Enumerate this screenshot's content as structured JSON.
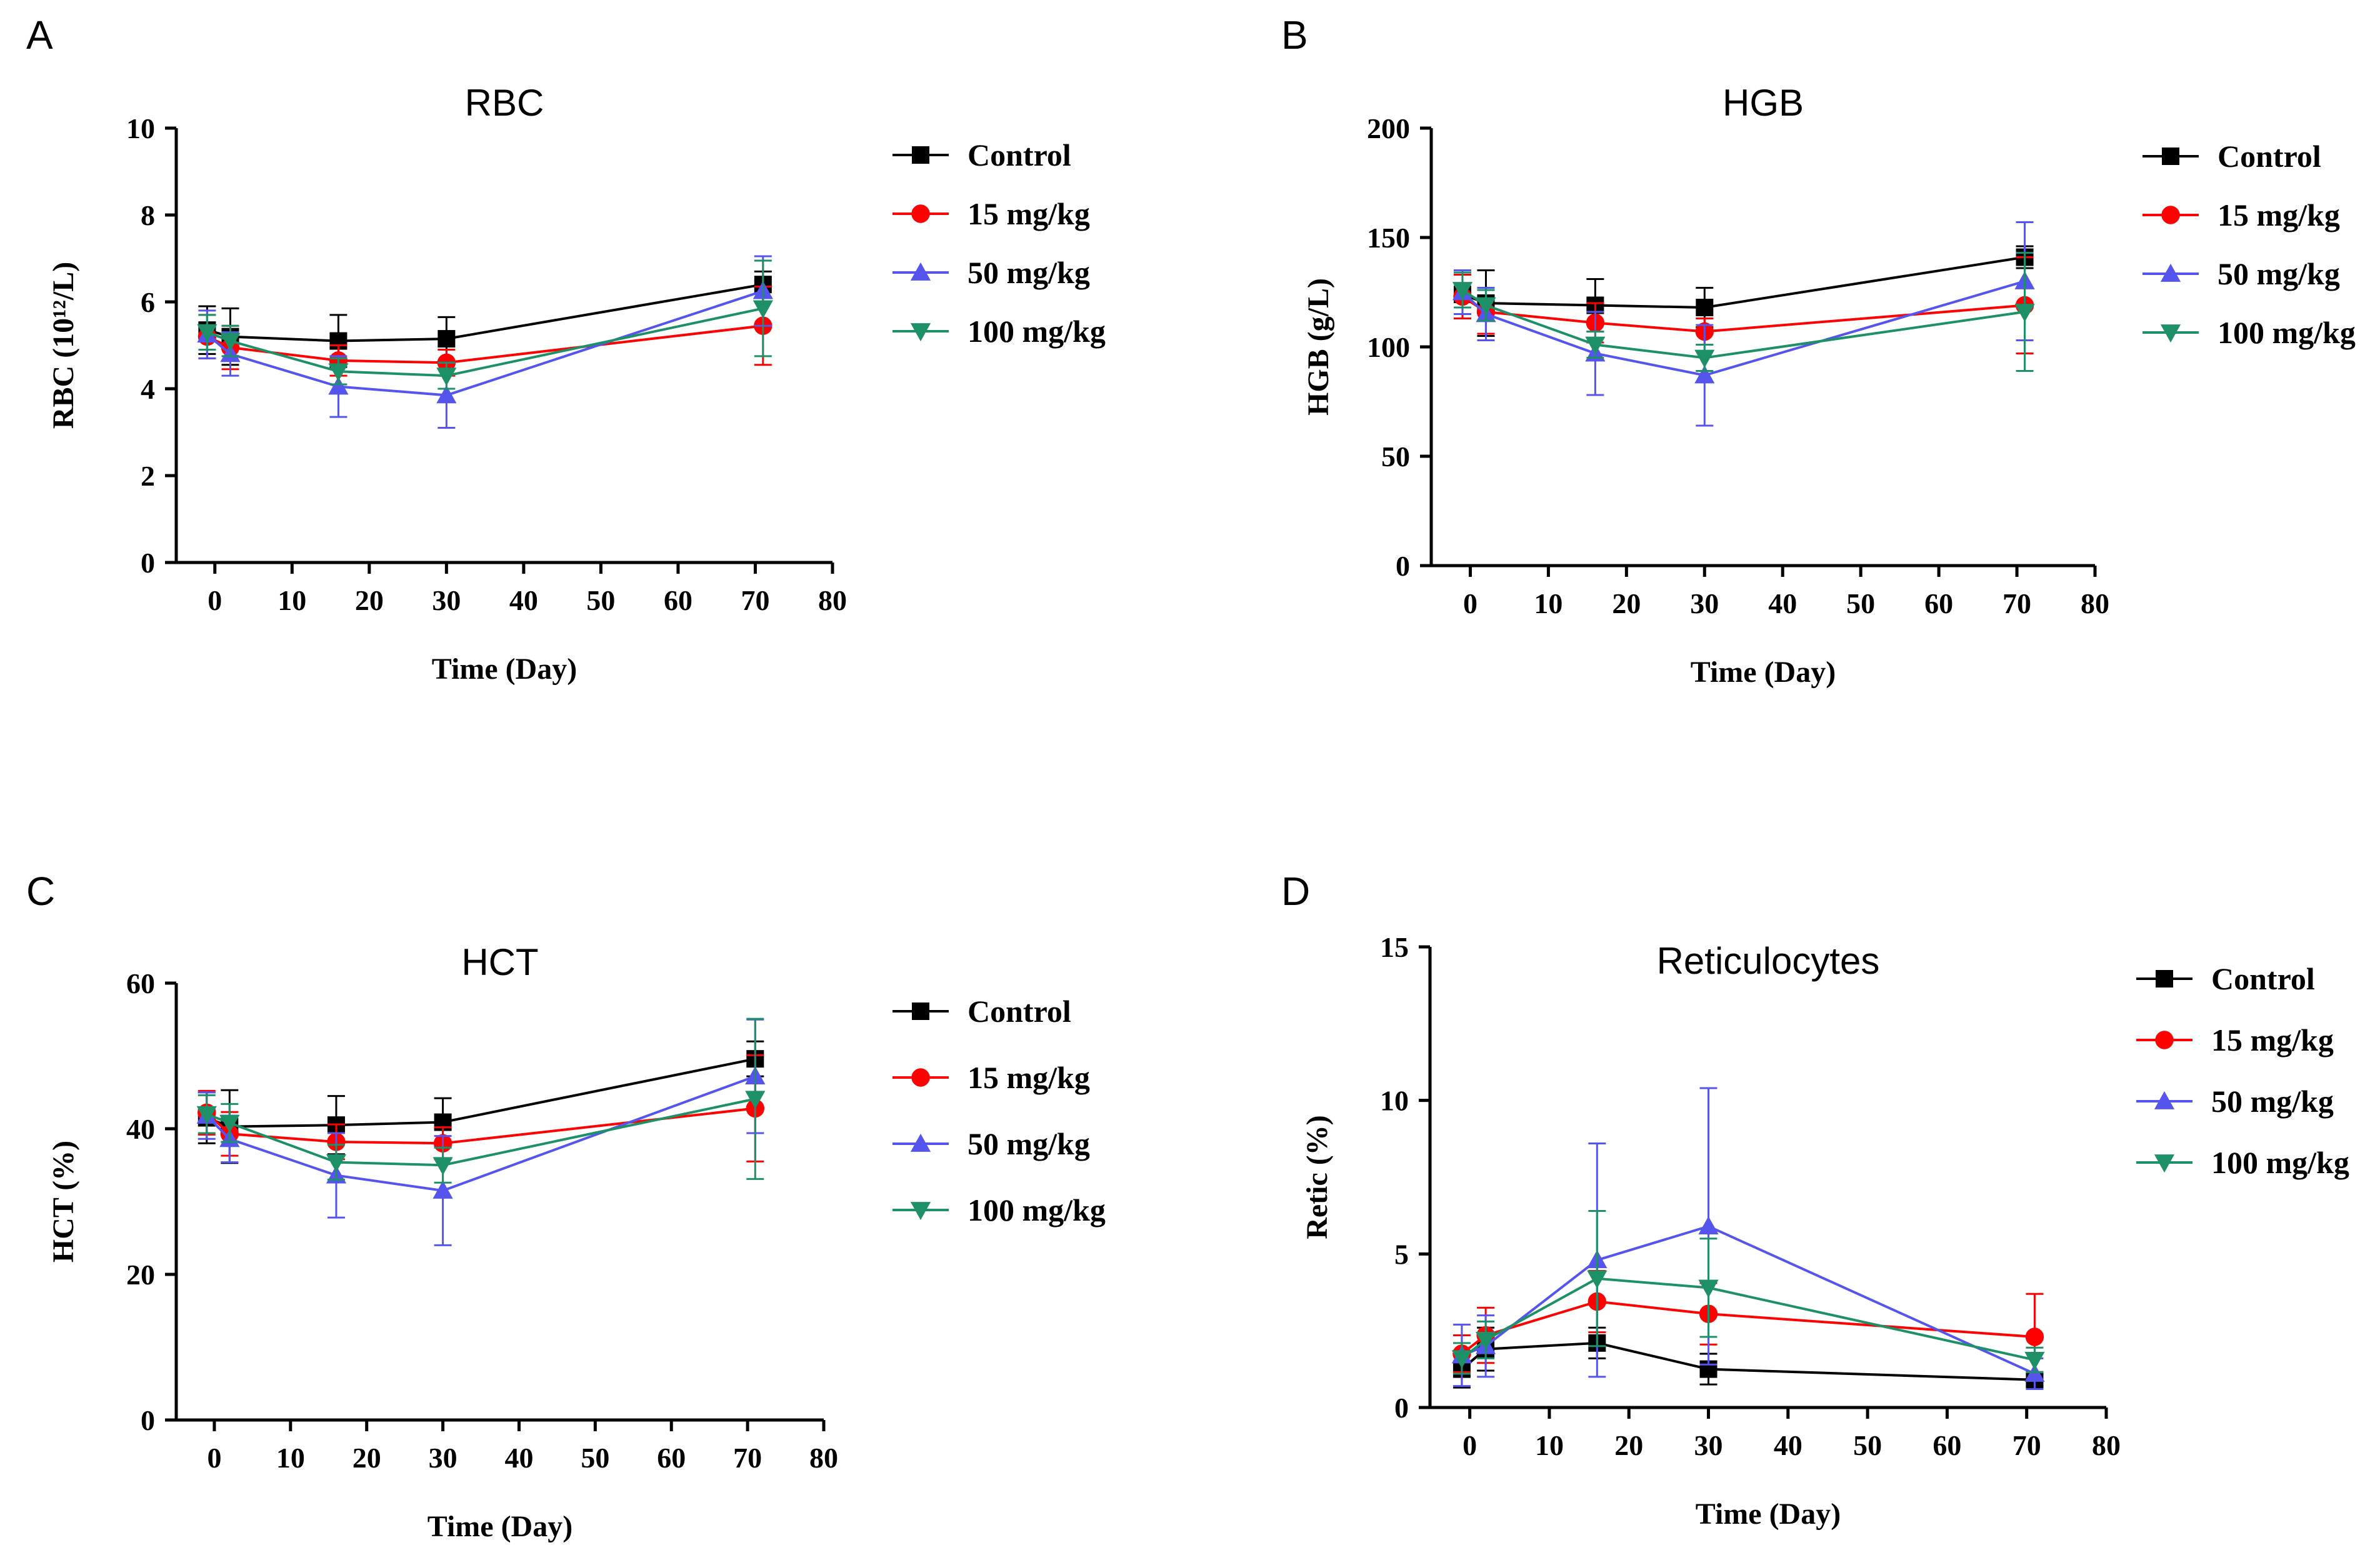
{
  "figure": {
    "panel_letters": [
      "A",
      "B",
      "C",
      "D"
    ]
  },
  "colors": {
    "control": "#000000",
    "15": "#ff0000",
    "50": "#5555ee",
    "100": "#1e9068"
  },
  "chart_data": [
    {
      "type": "line",
      "panel": "A",
      "title": "RBC",
      "ylabel": "RBC (10¹²/L)",
      "xlabel": "Time (Day)",
      "xlim": [
        -5,
        80
      ],
      "ylim": [
        0,
        10
      ],
      "xticks": [
        0,
        10,
        20,
        30,
        40,
        50,
        60,
        70,
        80
      ],
      "yticks": [
        0,
        2,
        4,
        6,
        8,
        10
      ],
      "legend_position": "right",
      "series": [
        {
          "name": "Control",
          "marker": "square",
          "color": "#000000",
          "x": [
            -1,
            2,
            16,
            30,
            71
          ],
          "y": [
            5.35,
            5.2,
            5.1,
            5.15,
            6.4
          ],
          "err": [
            0.55,
            0.65,
            0.6,
            0.5,
            0.3
          ]
        },
        {
          "name": "15 mg/kg",
          "marker": "circle",
          "color": "#ff0000",
          "x": [
            -1,
            2,
            16,
            30,
            71
          ],
          "y": [
            5.2,
            4.95,
            4.65,
            4.6,
            5.45
          ],
          "err": [
            0.5,
            0.5,
            0.35,
            0.3,
            0.9
          ]
        },
        {
          "name": "50 mg/kg",
          "marker": "triangle-up",
          "color": "#5555ee",
          "x": [
            -1,
            2,
            16,
            30,
            71
          ],
          "y": [
            5.25,
            4.8,
            4.05,
            3.85,
            6.25
          ],
          "err": [
            0.55,
            0.5,
            0.7,
            0.75,
            0.8
          ]
        },
        {
          "name": "100 mg/kg",
          "marker": "triangle-down",
          "color": "#1e9068",
          "x": [
            -1,
            2,
            16,
            30,
            71
          ],
          "y": [
            5.3,
            5.1,
            4.4,
            4.3,
            5.85
          ],
          "err": [
            0.4,
            0.35,
            0.3,
            0.3,
            1.1
          ]
        }
      ]
    },
    {
      "type": "line",
      "panel": "B",
      "title": "HGB",
      "ylabel": "HGB (g/L)",
      "xlabel": "Time (Day)",
      "xlim": [
        -5,
        80
      ],
      "ylim": [
        0,
        200
      ],
      "xticks": [
        0,
        10,
        20,
        30,
        40,
        50,
        60,
        70,
        80
      ],
      "yticks": [
        0,
        50,
        100,
        150,
        200
      ],
      "legend_position": "right",
      "series": [
        {
          "name": "Control",
          "marker": "square",
          "color": "#000000",
          "x": [
            -1,
            2,
            16,
            30,
            71
          ],
          "y": [
            124,
            120,
            119,
            118,
            141
          ],
          "err": [
            11,
            15,
            12,
            9,
            5
          ]
        },
        {
          "name": "15 mg/kg",
          "marker": "circle",
          "color": "#ff0000",
          "x": [
            -1,
            2,
            16,
            30,
            71
          ],
          "y": [
            123,
            116,
            111,
            107,
            119
          ],
          "err": [
            10,
            10,
            9,
            6,
            22
          ]
        },
        {
          "name": "50 mg/kg",
          "marker": "triangle-up",
          "color": "#5555ee",
          "x": [
            -1,
            2,
            16,
            30,
            71
          ],
          "y": [
            125,
            115,
            97,
            87,
            130
          ],
          "err": [
            10,
            12,
            19,
            23,
            27
          ]
        },
        {
          "name": "100 mg/kg",
          "marker": "triangle-down",
          "color": "#1e9068",
          "x": [
            -1,
            2,
            16,
            30,
            71
          ],
          "y": [
            126,
            119,
            101,
            95,
            116
          ],
          "err": [
            8,
            7,
            6,
            6,
            27
          ]
        }
      ]
    },
    {
      "type": "line",
      "panel": "C",
      "title": "HCT",
      "ylabel": "HCT (%)",
      "xlabel": "Time (Day)",
      "xlim": [
        -5,
        80
      ],
      "ylim": [
        0,
        60
      ],
      "xticks": [
        0,
        10,
        20,
        30,
        40,
        50,
        60,
        70,
        80
      ],
      "yticks": [
        0,
        20,
        40,
        60
      ],
      "legend_position": "right",
      "series": [
        {
          "name": "Control",
          "marker": "square",
          "color": "#000000",
          "x": [
            -1,
            2,
            16,
            30,
            71
          ],
          "y": [
            41.5,
            40.3,
            40.5,
            40.9,
            49.6
          ],
          "err": [
            3.5,
            5.0,
            4.0,
            3.3,
            2.4
          ]
        },
        {
          "name": "15 mg/kg",
          "marker": "circle",
          "color": "#ff0000",
          "x": [
            -1,
            2,
            16,
            30,
            71
          ],
          "y": [
            42.2,
            39.3,
            38.2,
            38.0,
            42.8
          ],
          "err": [
            3.0,
            3.0,
            2.4,
            2.2,
            7.3
          ]
        },
        {
          "name": "50 mg/kg",
          "marker": "triangle-up",
          "color": "#5555ee",
          "x": [
            -1,
            2,
            16,
            30,
            71
          ],
          "y": [
            41.8,
            38.6,
            33.6,
            31.5,
            47.2
          ],
          "err": [
            3.2,
            3.2,
            5.8,
            7.5,
            7.8
          ]
        },
        {
          "name": "100 mg/kg",
          "marker": "triangle-down",
          "color": "#1e9068",
          "x": [
            -1,
            2,
            16,
            30,
            71
          ],
          "y": [
            42.0,
            40.8,
            35.4,
            35.0,
            44.1
          ],
          "err": [
            2.6,
            2.6,
            2.4,
            2.4,
            11.0
          ]
        }
      ]
    },
    {
      "type": "line",
      "panel": "D",
      "title": "Reticulocytes",
      "ylabel": "Retic (%)",
      "xlabel": "Time (Day)",
      "xlim": [
        -5,
        80
      ],
      "ylim": [
        0,
        15
      ],
      "xticks": [
        0,
        10,
        20,
        30,
        40,
        50,
        60,
        70,
        80
      ],
      "yticks": [
        0,
        5,
        10,
        15
      ],
      "legend_position": "right",
      "series": [
        {
          "name": "Control",
          "marker": "square",
          "color": "#000000",
          "x": [
            -1,
            2,
            16,
            30,
            71
          ],
          "y": [
            1.25,
            1.9,
            2.1,
            1.25,
            0.9
          ],
          "err": [
            0.6,
            0.7,
            0.5,
            0.5,
            0.2
          ]
        },
        {
          "name": "15 mg/kg",
          "marker": "circle",
          "color": "#ff0000",
          "x": [
            -1,
            2,
            16,
            30,
            71
          ],
          "y": [
            1.75,
            2.35,
            3.45,
            3.05,
            2.3
          ],
          "err": [
            0.6,
            0.9,
            1.0,
            1.0,
            1.4
          ]
        },
        {
          "name": "50 mg/kg",
          "marker": "triangle-up",
          "color": "#5555ee",
          "x": [
            -1,
            2,
            16,
            30,
            71
          ],
          "y": [
            1.7,
            2.0,
            4.8,
            5.9,
            1.1
          ],
          "err": [
            1.0,
            1.0,
            3.8,
            4.5,
            0.5
          ]
        },
        {
          "name": "100 mg/kg",
          "marker": "triangle-down",
          "color": "#1e9068",
          "x": [
            -1,
            2,
            16,
            30,
            71
          ],
          "y": [
            1.6,
            2.2,
            4.2,
            3.9,
            1.55
          ],
          "err": [
            0.5,
            0.6,
            2.2,
            1.6,
            0.4
          ]
        }
      ]
    }
  ]
}
